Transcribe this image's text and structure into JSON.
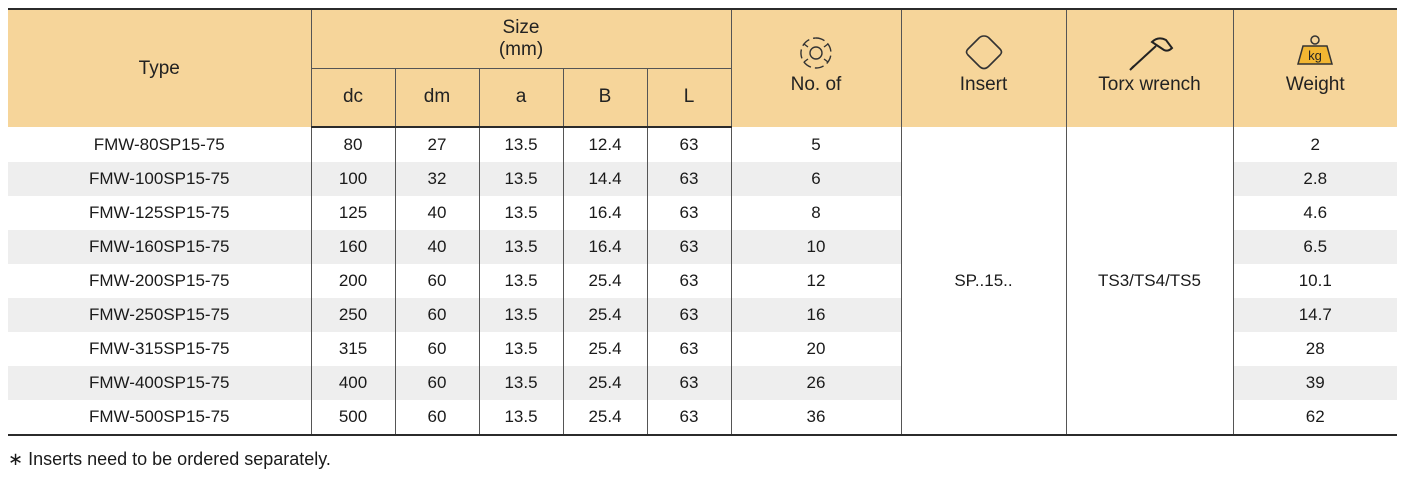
{
  "header": {
    "type": "Type",
    "size_line1": "Size",
    "size_line2": "(mm)",
    "dims": [
      "dc",
      "dm",
      "a",
      "B",
      "L"
    ],
    "no_of": "No. of",
    "insert": "Insert",
    "torx": "Torx wrench",
    "weight": "Weight",
    "weight_icon_text": "kg",
    "icons": {
      "no_of": "insert-count-icon",
      "insert": "square-insert-icon",
      "torx": "torx-wrench-icon",
      "weight": "weight-kg-icon"
    }
  },
  "rows": [
    {
      "type": "FMW-80SP15-75",
      "dc": "80",
      "dm": "27",
      "a": "13.5",
      "B": "12.4",
      "L": "63",
      "no": "5",
      "weight": "2"
    },
    {
      "type": "FMW-100SP15-75",
      "dc": "100",
      "dm": "32",
      "a": "13.5",
      "B": "14.4",
      "L": "63",
      "no": "6",
      "weight": "2.8"
    },
    {
      "type": "FMW-125SP15-75",
      "dc": "125",
      "dm": "40",
      "a": "13.5",
      "B": "16.4",
      "L": "63",
      "no": "8",
      "weight": "4.6"
    },
    {
      "type": "FMW-160SP15-75",
      "dc": "160",
      "dm": "40",
      "a": "13.5",
      "B": "16.4",
      "L": "63",
      "no": "10",
      "weight": "6.5"
    },
    {
      "type": "FMW-200SP15-75",
      "dc": "200",
      "dm": "60",
      "a": "13.5",
      "B": "25.4",
      "L": "63",
      "no": "12",
      "weight": "10.1"
    },
    {
      "type": "FMW-250SP15-75",
      "dc": "250",
      "dm": "60",
      "a": "13.5",
      "B": "25.4",
      "L": "63",
      "no": "16",
      "weight": "14.7"
    },
    {
      "type": "FMW-315SP15-75",
      "dc": "315",
      "dm": "60",
      "a": "13.5",
      "B": "25.4",
      "L": "63",
      "no": "20",
      "weight": "28"
    },
    {
      "type": "FMW-400SP15-75",
      "dc": "400",
      "dm": "60",
      "a": "13.5",
      "B": "25.4",
      "L": "63",
      "no": "26",
      "weight": "39"
    },
    {
      "type": "FMW-500SP15-75",
      "dc": "500",
      "dm": "60",
      "a": "13.5",
      "B": "25.4",
      "L": "63",
      "no": "36",
      "weight": "62"
    }
  ],
  "insert_value": "SP..15..",
  "torx_value": "TS3/TS4/TS5",
  "footnote": "∗ Inserts need to be ordered separately.",
  "colors": {
    "header_bg": "#f6d59a",
    "stripe": "#eeeeee",
    "rule": "#2b2b2b"
  }
}
